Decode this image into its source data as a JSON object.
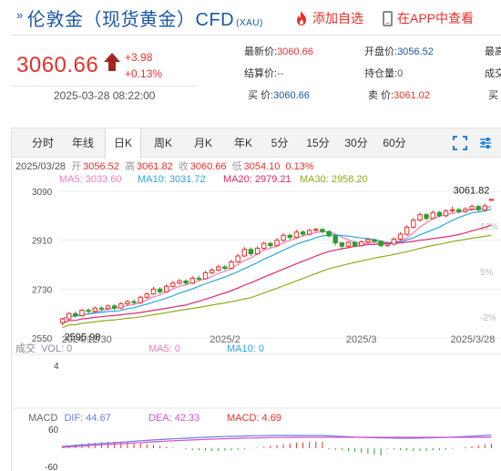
{
  "header": {
    "title": "伦敦金（现货黄金）CFD",
    "code": "(XAU)",
    "add_favorite": "添加自选",
    "view_in_app": "在APP中查看"
  },
  "quote": {
    "price": "3060.66",
    "change": "+3.98",
    "change_pct": "+0.13%",
    "datetime": "2025-03-28 08:22:00",
    "fields": [
      {
        "label": "最新价:",
        "value": "3060.66"
      },
      {
        "label": "结算价:",
        "value": "--"
      },
      {
        "label": "买  价:",
        "value": "3060.66"
      },
      {
        "label": "开盘价:",
        "value": "3056.52"
      },
      {
        "label": "持仓量:",
        "value": "0"
      },
      {
        "label": "卖  价:",
        "value": "3061.02"
      },
      {
        "label": "最高",
        "value": ""
      },
      {
        "label": "成交",
        "value": ""
      },
      {
        "label": "买",
        "value": ""
      }
    ]
  },
  "tabs": [
    "分时",
    "年线",
    "日K",
    "周K",
    "月K",
    "年K",
    "5分",
    "15分",
    "30分",
    "60分"
  ],
  "active_tab": "日K",
  "ohlc_line": {
    "date": "2025/03/28",
    "open_label": "开",
    "open": "3056.52",
    "high_label": "高",
    "high": "3061.82",
    "close_label": "收",
    "close": "3060.66",
    "low_label": "低",
    "low": "3054.10",
    "pct": "0.13%"
  },
  "ma_line": {
    "ma5": "MA5: 3033.60",
    "ma10": "MA10: 3031.72",
    "ma20": "MA20: 2979.21",
    "ma30": "MA30: 2958.20"
  },
  "volume_line": {
    "label": "成交",
    "vol": "VOL: 0",
    "ma5": "MA5: 0",
    "ma10": "MA10: 0",
    "y_tick": "4"
  },
  "macd_line": {
    "label": "MACD",
    "dif": "DIF: 44.67",
    "dea": "DEA: 42.33",
    "macd": "MACD: 4.69",
    "y_ticks": [
      "60",
      "-60"
    ]
  },
  "colors": {
    "up": "#e8302a",
    "down": "#2c9c2f",
    "ma5": "#f17bbc",
    "ma10": "#2aa7de",
    "ma20": "#e0296d",
    "ma30": "#8cad1c",
    "dif": "#6a7be8",
    "dea": "#d652c8"
  },
  "chart_data": {
    "type": "candlestick",
    "title": "",
    "xlabel": "",
    "ylabel": "",
    "ylim": [
      2540,
      3110
    ],
    "y_ticks": [
      "3090",
      "2910",
      "2730",
      "2550"
    ],
    "right_ticks": [
      "12%",
      "5%",
      "-2%"
    ],
    "x_ticks": [
      "2024/12/30",
      "2025/2",
      "2025/3",
      "2025/3/28"
    ],
    "annotations": {
      "max": "3061.82",
      "min": "2595.98"
    },
    "candles": [
      [
        2606,
        2620,
        2596,
        2624
      ],
      [
        2620,
        2640,
        2615,
        2646
      ],
      [
        2640,
        2632,
        2625,
        2648
      ],
      [
        2632,
        2652,
        2628,
        2657
      ],
      [
        2652,
        2648,
        2640,
        2660
      ],
      [
        2648,
        2660,
        2642,
        2666
      ],
      [
        2660,
        2658,
        2650,
        2667
      ],
      [
        2658,
        2668,
        2652,
        2673
      ],
      [
        2668,
        2660,
        2652,
        2674
      ],
      [
        2660,
        2676,
        2656,
        2682
      ],
      [
        2676,
        2684,
        2670,
        2690
      ],
      [
        2684,
        2680,
        2672,
        2692
      ],
      [
        2680,
        2700,
        2676,
        2706
      ],
      [
        2700,
        2712,
        2695,
        2718
      ],
      [
        2712,
        2730,
        2708,
        2738
      ],
      [
        2730,
        2720,
        2712,
        2737
      ],
      [
        2720,
        2740,
        2716,
        2748
      ],
      [
        2740,
        2752,
        2735,
        2760
      ],
      [
        2752,
        2760,
        2746,
        2768
      ],
      [
        2760,
        2752,
        2745,
        2766
      ],
      [
        2752,
        2770,
        2748,
        2778
      ],
      [
        2770,
        2768,
        2760,
        2780
      ],
      [
        2768,
        2790,
        2764,
        2798
      ],
      [
        2790,
        2800,
        2784,
        2808
      ],
      [
        2800,
        2812,
        2795,
        2820
      ],
      [
        2812,
        2806,
        2800,
        2818
      ],
      [
        2806,
        2830,
        2802,
        2838
      ],
      [
        2830,
        2852,
        2826,
        2860
      ],
      [
        2852,
        2876,
        2848,
        2884
      ],
      [
        2876,
        2860,
        2852,
        2884
      ],
      [
        2860,
        2880,
        2856,
        2888
      ],
      [
        2880,
        2898,
        2874,
        2906
      ],
      [
        2898,
        2890,
        2882,
        2904
      ],
      [
        2890,
        2910,
        2886,
        2918
      ],
      [
        2910,
        2928,
        2904,
        2936
      ],
      [
        2928,
        2920,
        2912,
        2934
      ],
      [
        2920,
        2940,
        2916,
        2948
      ],
      [
        2940,
        2932,
        2924,
        2946
      ],
      [
        2932,
        2946,
        2928,
        2952
      ],
      [
        2946,
        2950,
        2940,
        2956
      ],
      [
        2950,
        2942,
        2934,
        2954
      ],
      [
        2942,
        2926,
        2920,
        2946
      ],
      [
        2926,
        2900,
        2890,
        2930
      ],
      [
        2900,
        2888,
        2876,
        2904
      ],
      [
        2888,
        2902,
        2880,
        2906
      ],
      [
        2902,
        2890,
        2884,
        2908
      ],
      [
        2890,
        2904,
        2886,
        2910
      ],
      [
        2904,
        2912,
        2898,
        2918
      ],
      [
        2912,
        2906,
        2900,
        2916
      ],
      [
        2906,
        2890,
        2884,
        2910
      ],
      [
        2890,
        2896,
        2884,
        2904
      ],
      [
        2896,
        2914,
        2890,
        2920
      ],
      [
        2914,
        2932,
        2908,
        2940
      ],
      [
        2932,
        2958,
        2926,
        2966
      ],
      [
        2958,
        2984,
        2952,
        2992
      ],
      [
        2984,
        3004,
        2978,
        3012
      ],
      [
        3004,
        2990,
        2982,
        3010
      ],
      [
        2990,
        3012,
        2986,
        3020
      ],
      [
        3012,
        3000,
        2994,
        3018
      ],
      [
        3000,
        3018,
        2994,
        3024
      ],
      [
        3018,
        3022,
        3010,
        3034
      ],
      [
        3022,
        3016,
        3008,
        3030
      ],
      [
        3016,
        3024,
        3010,
        3032
      ],
      [
        3024,
        3034,
        3018,
        3042
      ],
      [
        3034,
        3022,
        3014,
        3040
      ],
      [
        3022,
        3036,
        3016,
        3044
      ],
      [
        3056.52,
        3060.66,
        3054.1,
        3061.82
      ]
    ]
  }
}
